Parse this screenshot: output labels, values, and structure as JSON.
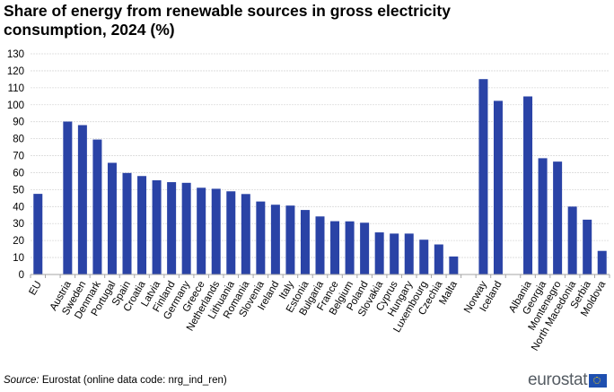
{
  "title": "Share of energy from renewable sources in gross electricity consumption, 2024 (%)",
  "source": {
    "label": "Source:",
    "text": " Eurostat (online  data code: nrg_ind_ren)"
  },
  "logo": {
    "text": "eurostat",
    "icon": "eu-flag-icon"
  },
  "colors": {
    "bar": "#2a43a6",
    "grid": "#d9d9d9",
    "axis": "#a6a6a6"
  },
  "chart_data": {
    "type": "bar",
    "title": "Share of energy from renewable sources in gross electricity consumption, 2024 (%)",
    "xlabel": "",
    "ylabel": "",
    "ylim": [
      0,
      130
    ],
    "yticks": [
      0,
      10,
      20,
      30,
      40,
      50,
      60,
      70,
      80,
      90,
      100,
      110,
      120,
      130
    ],
    "grid": true,
    "categories": [
      "EU",
      "",
      "Austria",
      "Sweden",
      "Denmark",
      "Portugal",
      "Spain",
      "Croatia",
      "Latvia",
      "Finland",
      "Germany",
      "Greece",
      "Netherlands",
      "Lithuania",
      "Romania",
      "Slovenia",
      "Ireland",
      "Italy",
      "Estonia",
      "Bulgaria",
      "France",
      "Belgium",
      "Poland",
      "Slovakia",
      "Cyprus",
      "Hungary",
      "Luxembourg",
      "Czechia",
      "Malta",
      "",
      "Norway",
      "Iceland",
      "",
      "Albania",
      "Georgia",
      "Montenegro",
      "North Macedonia",
      "Serbia",
      "Moldova"
    ],
    "values": [
      47.5,
      null,
      90.1,
      88.0,
      79.5,
      65.8,
      59.8,
      58.0,
      55.5,
      54.4,
      54.0,
      51.1,
      50.5,
      49.0,
      47.4,
      43.0,
      41.1,
      40.6,
      38.0,
      34.2,
      31.4,
      31.3,
      30.5,
      24.8,
      24.1,
      24.1,
      20.5,
      17.7,
      10.6,
      null,
      115.1,
      102.3,
      null,
      104.9,
      68.5,
      66.5,
      40.0,
      32.3,
      13.9
    ]
  }
}
